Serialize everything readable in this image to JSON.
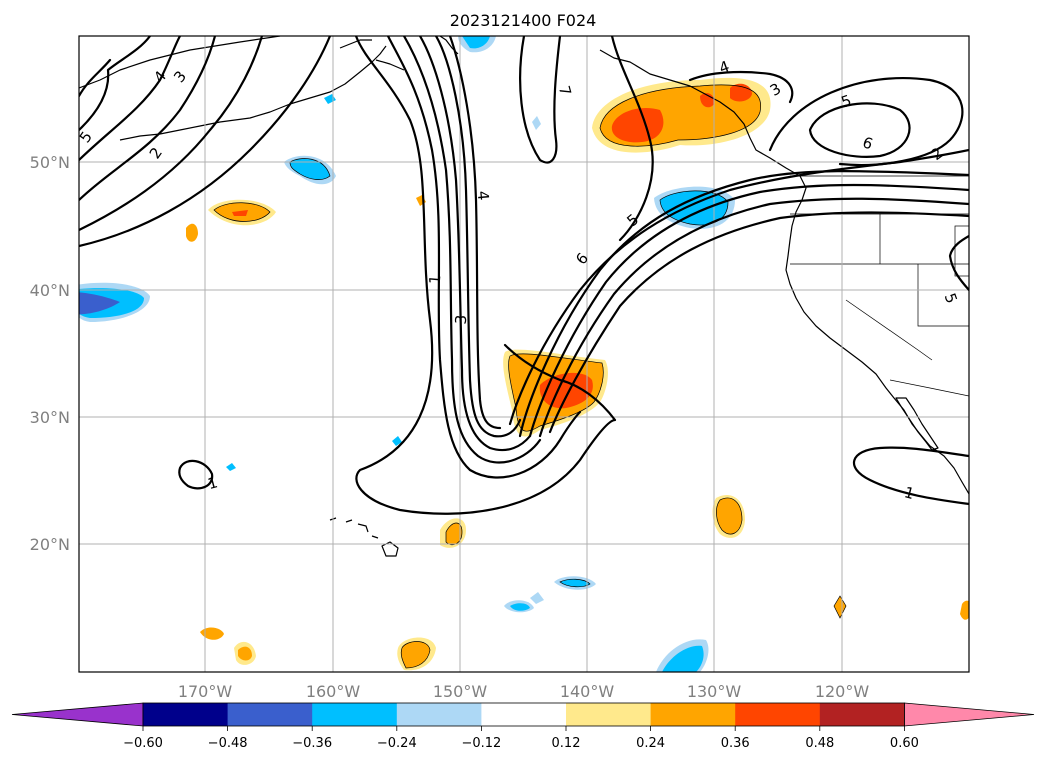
{
  "title": "2023121400 F024",
  "map": {
    "lat_labels": [
      "50°N",
      "40°N",
      "30°N",
      "20°N"
    ],
    "lon_labels": [
      "170°W",
      "160°W",
      "150°W",
      "140°W",
      "130°W",
      "120°W"
    ]
  },
  "contour_labels": [
    "5",
    "4",
    "3",
    "2",
    "7",
    "4",
    "3",
    "5",
    "6",
    "2",
    "1",
    "3",
    "4",
    "5",
    "6",
    "1",
    "1",
    "5"
  ],
  "colorbar": {
    "tick_labels": [
      "−0.60",
      "−0.48",
      "−0.36",
      "−0.24",
      "−0.12",
      "0.12",
      "0.24",
      "0.36",
      "0.48",
      "0.60"
    ],
    "colors": [
      "#9932cc",
      "#00008b",
      "#3a5fcd",
      "#00bfff",
      "#add8f5",
      "#ffffff",
      "#ffe98c",
      "#ffa500",
      "#ff4500",
      "#b22222",
      "#ff88aa"
    ]
  },
  "colors": {
    "pos_light": "#ffe98c",
    "pos_mid": "#ffa500",
    "pos_strong": "#ff4500",
    "neg_light": "#add8f5",
    "neg_mid": "#00bfff",
    "neg_strong": "#3a5fcd"
  }
}
